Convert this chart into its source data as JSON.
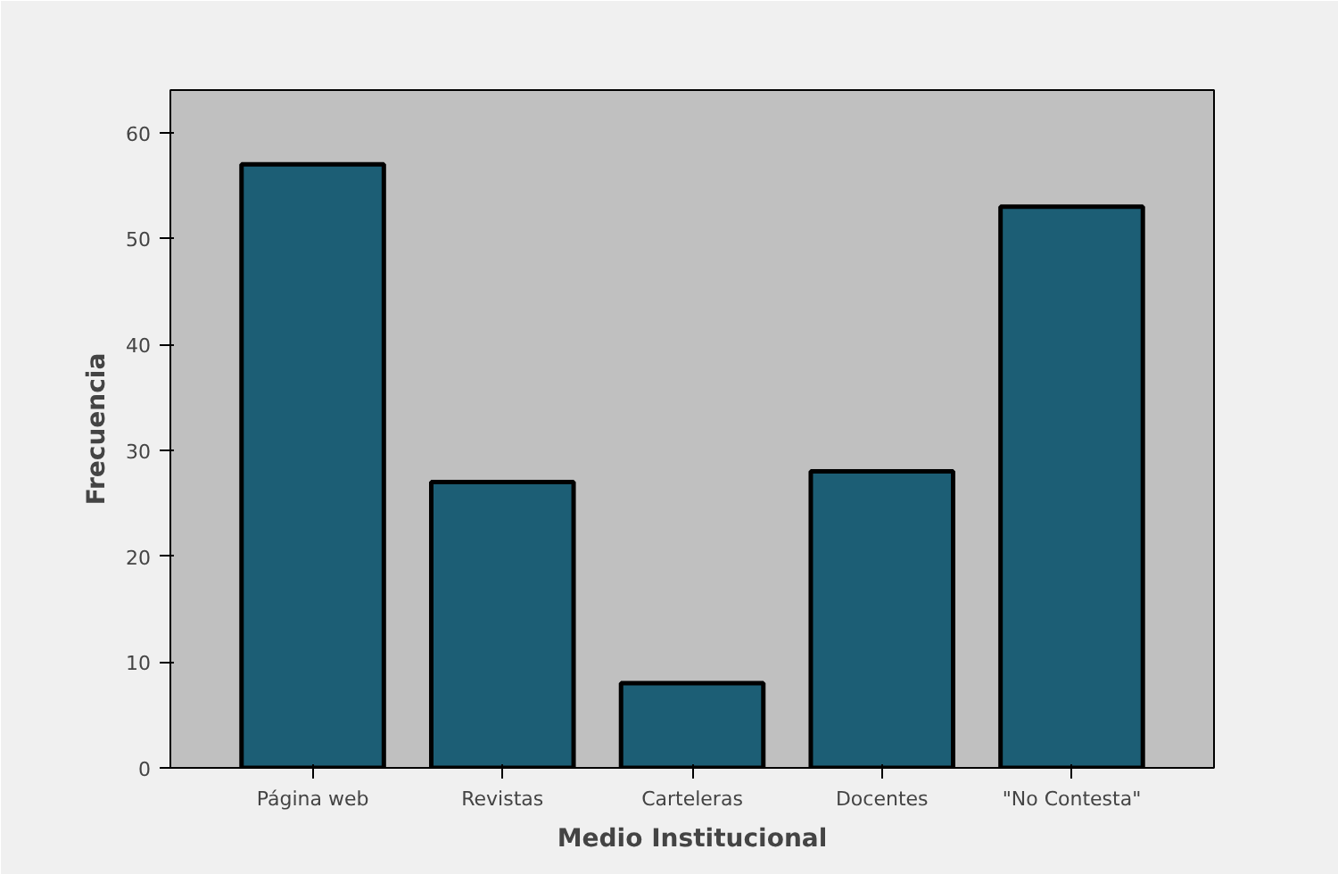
{
  "chart_data": {
    "type": "bar",
    "xlabel": "Medio Institucional",
    "ylabel": "Frecuencia",
    "categories": [
      "Página web",
      "Revistas",
      "Carteleras",
      "Docentes",
      "\"No Contesta\""
    ],
    "values": [
      57,
      27,
      8,
      28,
      53
    ],
    "color": "#1c5e75",
    "ylim": [
      0,
      64
    ],
    "yticks": [
      0,
      10,
      20,
      30,
      40,
      50,
      60
    ],
    "grid": false
  }
}
